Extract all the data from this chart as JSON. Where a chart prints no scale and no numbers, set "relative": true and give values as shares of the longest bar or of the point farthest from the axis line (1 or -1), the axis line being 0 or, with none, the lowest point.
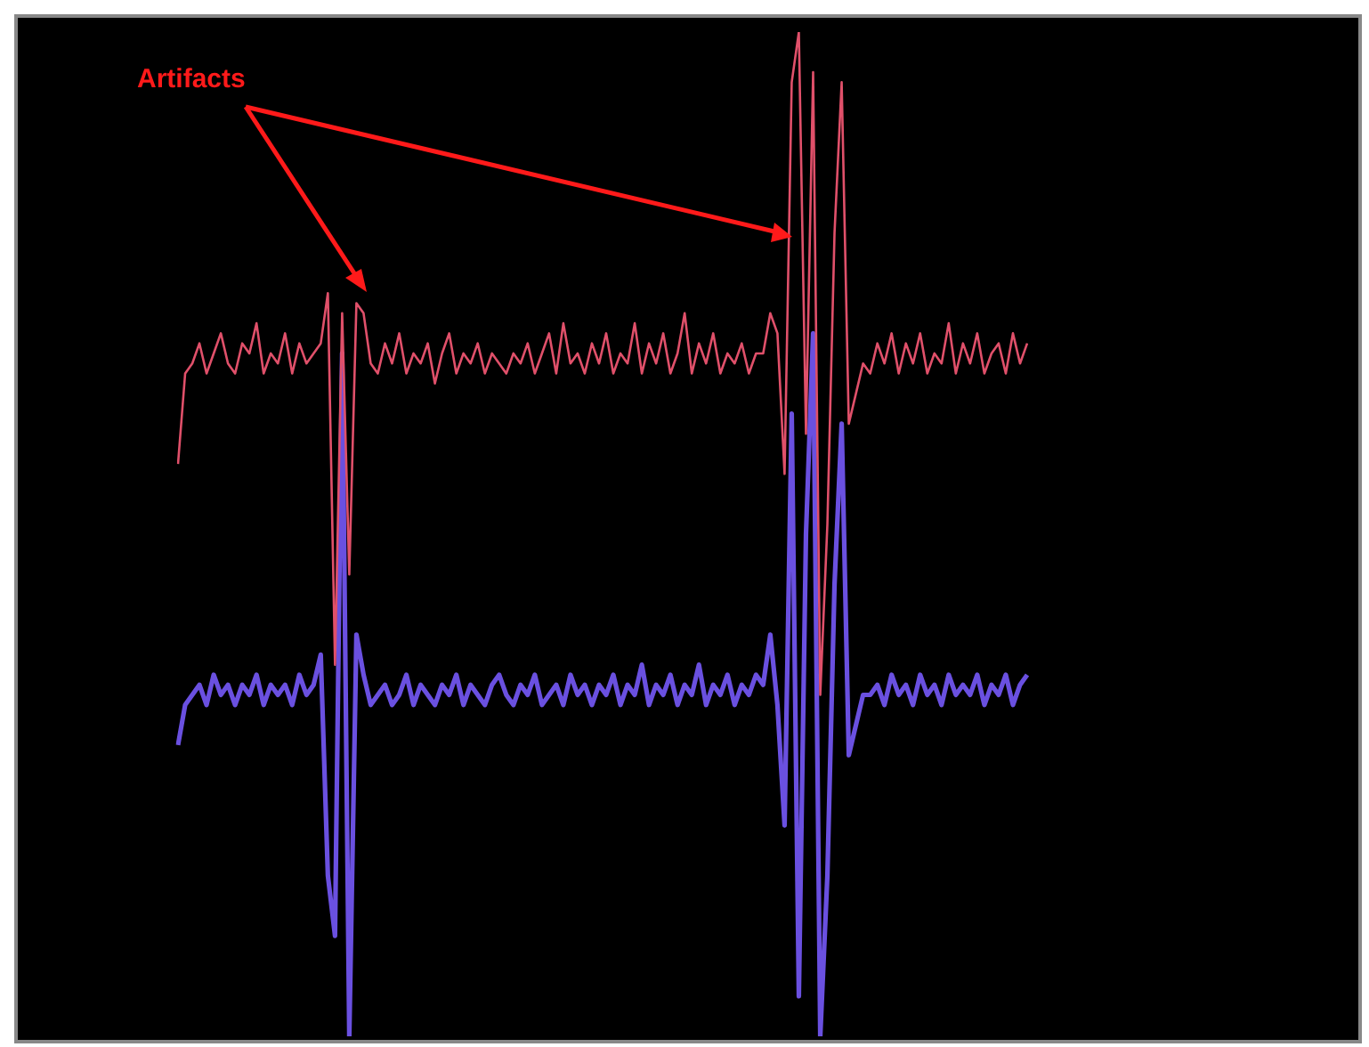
{
  "chart_data": {
    "type": "line",
    "relative": true,
    "annotations": [
      "Artifacts"
    ],
    "categories": [
      null,
      null,
      null,
      null,
      null,
      null,
      null,
      null,
      null,
      null,
      null,
      null,
      null,
      null,
      null,
      null,
      null,
      null,
      null,
      null,
      null,
      null,
      null,
      null,
      null,
      null,
      null,
      null,
      null,
      null,
      null,
      null,
      null,
      null,
      null,
      null,
      null,
      null,
      null,
      null,
      null,
      null,
      null,
      null,
      null,
      null,
      null,
      null,
      null,
      null,
      null,
      null,
      null,
      null,
      null,
      null,
      null,
      null,
      null,
      null,
      null,
      null,
      null,
      null,
      null,
      null,
      null,
      null,
      null,
      null,
      null,
      null,
      null,
      null,
      null,
      null,
      null,
      null,
      null,
      null,
      null,
      null,
      null,
      null,
      null,
      null,
      null,
      null,
      null,
      null,
      null,
      null,
      null,
      null,
      null,
      null,
      null,
      null,
      null,
      null,
      null,
      null,
      null,
      null,
      null,
      null,
      null,
      null,
      null,
      null,
      null,
      null,
      null,
      null,
      null,
      null,
      null,
      null,
      null,
      null
    ],
    "series": [
      {
        "color": "#e0506a",
        "values": [
          0.57,
          0.66,
          0.67,
          0.69,
          0.66,
          0.68,
          0.7,
          0.67,
          0.66,
          0.69,
          0.68,
          0.71,
          0.66,
          0.68,
          0.67,
          0.7,
          0.66,
          0.69,
          0.67,
          0.68,
          0.69,
          0.74,
          0.37,
          0.72,
          0.46,
          0.73,
          0.72,
          0.67,
          0.66,
          0.69,
          0.67,
          0.7,
          0.66,
          0.68,
          0.67,
          0.69,
          0.65,
          0.68,
          0.7,
          0.66,
          0.68,
          0.67,
          0.69,
          0.66,
          0.68,
          0.67,
          0.66,
          0.68,
          0.67,
          0.69,
          0.66,
          0.68,
          0.7,
          0.66,
          0.71,
          0.67,
          0.68,
          0.66,
          0.69,
          0.67,
          0.7,
          0.66,
          0.68,
          0.67,
          0.71,
          0.66,
          0.69,
          0.67,
          0.7,
          0.66,
          0.68,
          0.72,
          0.66,
          0.69,
          0.67,
          0.7,
          0.66,
          0.68,
          0.67,
          0.69,
          0.66,
          0.68,
          0.68,
          0.72,
          0.7,
          0.56,
          0.95,
          1.0,
          0.6,
          0.96,
          0.34,
          0.51,
          0.8,
          0.95,
          0.61,
          0.64,
          0.67,
          0.66,
          0.69,
          0.67,
          0.7,
          0.66,
          0.69,
          0.67,
          0.7,
          0.66,
          0.68,
          0.67,
          0.71,
          0.66,
          0.69,
          0.67,
          0.7,
          0.66,
          0.68,
          0.69,
          0.66,
          0.7,
          0.67,
          0.69
        ]
      },
      {
        "color": "#6a50e0",
        "values": [
          0.29,
          0.33,
          0.34,
          0.35,
          0.33,
          0.36,
          0.34,
          0.35,
          0.33,
          0.35,
          0.34,
          0.36,
          0.33,
          0.35,
          0.34,
          0.35,
          0.33,
          0.36,
          0.34,
          0.35,
          0.38,
          0.16,
          0.1,
          0.68,
          0.0,
          0.4,
          0.36,
          0.33,
          0.34,
          0.35,
          0.33,
          0.34,
          0.36,
          0.33,
          0.35,
          0.34,
          0.33,
          0.35,
          0.34,
          0.36,
          0.33,
          0.35,
          0.34,
          0.33,
          0.35,
          0.36,
          0.34,
          0.33,
          0.35,
          0.34,
          0.36,
          0.33,
          0.34,
          0.35,
          0.33,
          0.36,
          0.34,
          0.35,
          0.33,
          0.35,
          0.34,
          0.36,
          0.33,
          0.35,
          0.34,
          0.37,
          0.33,
          0.35,
          0.34,
          0.36,
          0.33,
          0.35,
          0.34,
          0.37,
          0.33,
          0.35,
          0.34,
          0.36,
          0.33,
          0.35,
          0.34,
          0.36,
          0.35,
          0.4,
          0.33,
          0.21,
          0.62,
          0.04,
          0.5,
          0.7,
          0.0,
          0.16,
          0.45,
          0.61,
          0.28,
          0.31,
          0.34,
          0.34,
          0.35,
          0.33,
          0.36,
          0.34,
          0.35,
          0.33,
          0.36,
          0.34,
          0.35,
          0.33,
          0.36,
          0.34,
          0.35,
          0.34,
          0.36,
          0.33,
          0.35,
          0.34,
          0.36,
          0.33,
          0.35,
          0.36
        ]
      }
    ]
  }
}
